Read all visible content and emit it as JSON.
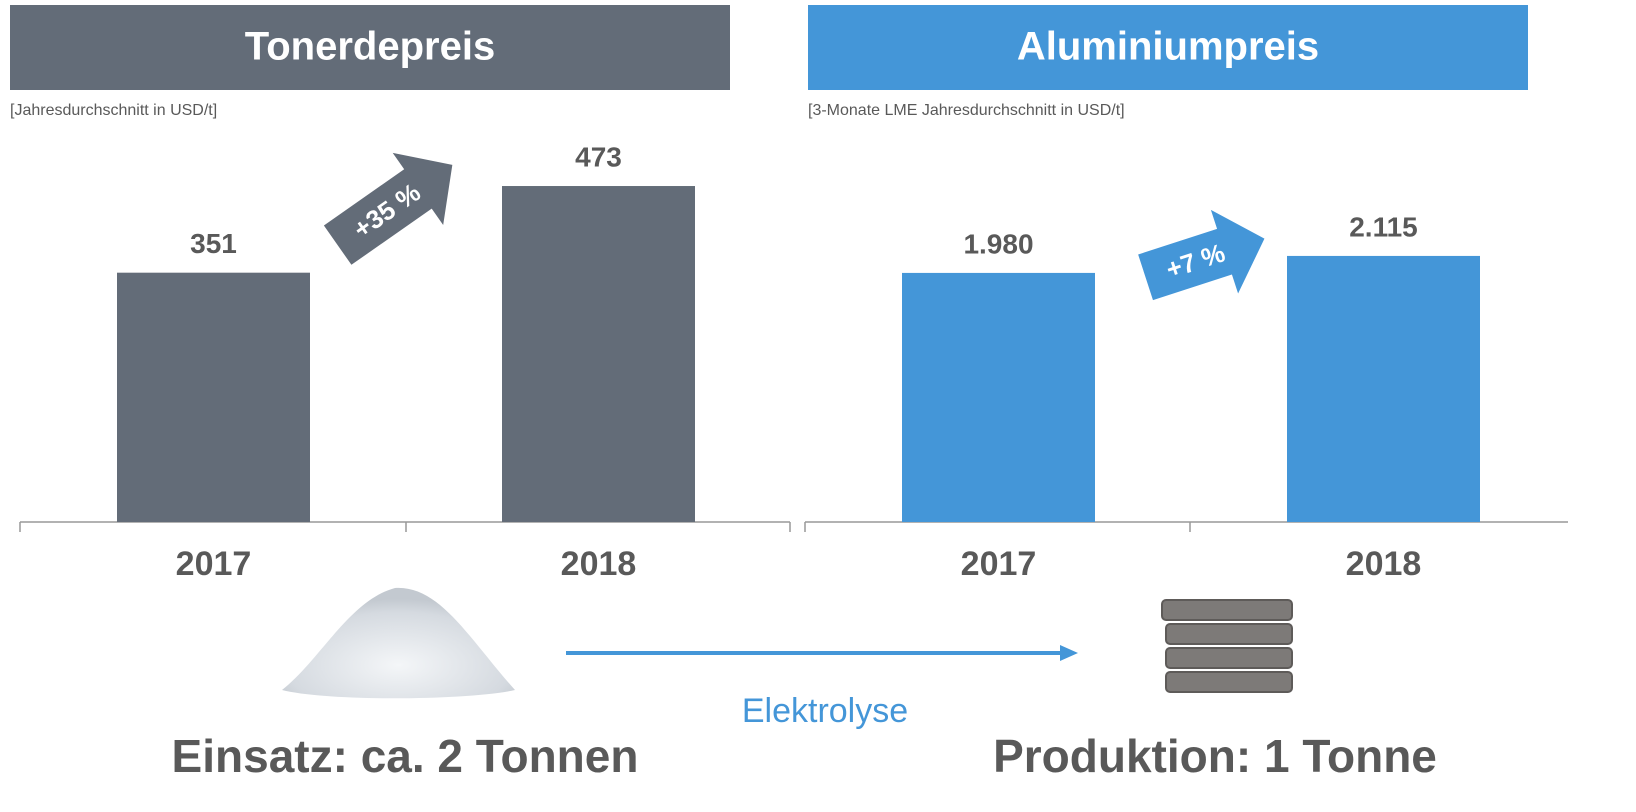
{
  "chart_data": [
    {
      "type": "bar",
      "title": "Tonerdepreis",
      "subtitle": "[Jahresdurchschnitt in USD/t]",
      "categories": [
        "2017",
        "2018"
      ],
      "values": [
        351,
        473
      ],
      "color": "#636c78",
      "annotation": "+35 %"
    },
    {
      "type": "bar",
      "title": "Aluminiumpreis",
      "subtitle": "[3-Monate LME Jahresdurchschnitt in USD/t]",
      "categories": [
        "2017",
        "2018"
      ],
      "values": [
        1980,
        2115
      ],
      "value_labels": [
        "1.980",
        "2.115"
      ],
      "color": "#4496d8",
      "annotation": "+7 %"
    }
  ],
  "process": {
    "label": "Elektrolyse",
    "input": "Einsatz: ca. 2 Tonnen",
    "output": "Produktion: 1 Tonne"
  }
}
